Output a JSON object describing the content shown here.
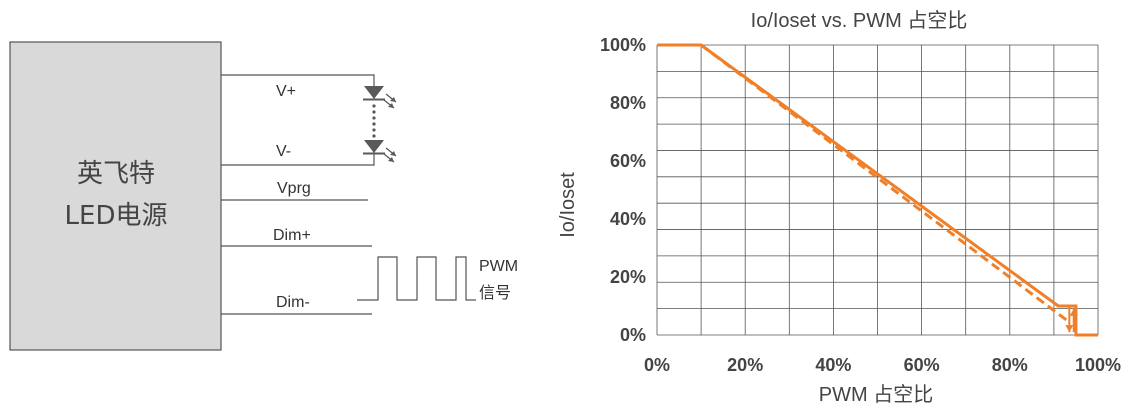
{
  "diagram": {
    "box_line1": "英飞特",
    "box_line2": "LED电源",
    "labels": {
      "vplus": "V+",
      "vminus": "V-",
      "vprg": "Vprg",
      "dimplus": "Dim+",
      "dimminus": "Dim-",
      "pwm_line1": "PWM",
      "pwm_line2": "信号"
    },
    "colors": {
      "wire": "#555555",
      "box_fill": "#d9d9d9",
      "box_stroke": "#555555",
      "led": "#595959"
    }
  },
  "chart_data": {
    "type": "line",
    "title": "Io/Ioset vs. PWM 占空比",
    "xlabel": "PWM 占空比",
    "ylabel": "Io/Ioset",
    "xlim": [
      0,
      100
    ],
    "ylim": [
      0,
      100
    ],
    "x_ticks": [
      "0%",
      "20%",
      "40%",
      "60%",
      "80%",
      "100%"
    ],
    "y_ticks": [
      "0%",
      "20%",
      "40%",
      "60%",
      "80%",
      "100%"
    ],
    "grid": true,
    "color": "#f07f28",
    "series": [
      {
        "style": "solid",
        "x": [
          0,
          10,
          91,
          95,
          95,
          100
        ],
        "y": [
          100,
          100,
          10,
          10,
          0,
          0
        ]
      },
      {
        "style": "dashed",
        "x": [
          10,
          93
        ],
        "y": [
          100,
          5
        ]
      }
    ],
    "arrow_annotations": [
      {
        "x": 93.5,
        "y_from": 10,
        "y_to": 1
      },
      {
        "x": 94.5,
        "y_from": 1,
        "y_to": 9
      }
    ]
  }
}
